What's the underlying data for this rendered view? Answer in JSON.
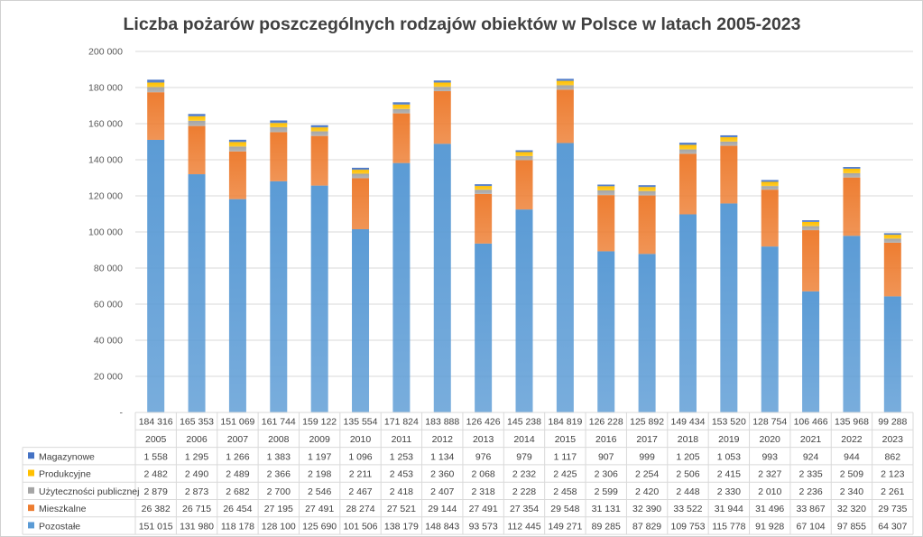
{
  "chart_data": {
    "type": "bar",
    "stacked": true,
    "title": "Liczba pożarów poszczególnych rodzajów obiektów w Polsce w latach 2005-2023",
    "xlabel": "",
    "ylabel": "",
    "ylim": [
      0,
      200000
    ],
    "yticks": [
      "-",
      "20 000",
      "40 000",
      "60 000",
      "80 000",
      "100 000",
      "120 000",
      "140 000",
      "160 000",
      "180 000",
      "200 000"
    ],
    "grid": true,
    "legend": "data-table-left",
    "categories": [
      "2005",
      "2006",
      "2007",
      "2008",
      "2009",
      "2010",
      "2011",
      "2012",
      "2013",
      "2014",
      "2015",
      "2016",
      "2017",
      "2018",
      "2019",
      "2020",
      "2021",
      "2022",
      "2023"
    ],
    "totals": [
      "184 316",
      "165 353",
      "151 069",
      "161 744",
      "159 122",
      "135 554",
      "171 824",
      "183 888",
      "126 426",
      "145 238",
      "184 819",
      "126 228",
      "125 892",
      "149 434",
      "153 520",
      "128 754",
      "106 466",
      "135 968",
      "99 288"
    ],
    "total_values": [
      184316,
      165353,
      151069,
      161744,
      159122,
      135554,
      171824,
      183888,
      126426,
      145238,
      184819,
      126228,
      125892,
      149434,
      153520,
      128754,
      106466,
      135968,
      99288
    ],
    "series": [
      {
        "name": "Pozostałe",
        "color": "#5b9bd5",
        "values": [
          151015,
          131980,
          118178,
          128100,
          125690,
          101506,
          138179,
          148843,
          93573,
          112445,
          149271,
          89285,
          87829,
          109753,
          115778,
          91928,
          67104,
          97855,
          64307
        ],
        "labels": [
          "151 015",
          "131 980",
          "118 178",
          "128 100",
          "125 690",
          "101 506",
          "138 179",
          "148 843",
          "93 573",
          "112 445",
          "149 271",
          "89 285",
          "87 829",
          "109 753",
          "115 778",
          "91 928",
          "67 104",
          "97 855",
          "64 307"
        ]
      },
      {
        "name": "Mieszkalne",
        "color": "#ed7d31",
        "values": [
          26382,
          26715,
          26454,
          27195,
          27491,
          28274,
          27521,
          29144,
          27491,
          27354,
          29548,
          31131,
          32390,
          33522,
          31944,
          31496,
          33867,
          32320,
          29735
        ],
        "labels": [
          "26 382",
          "26 715",
          "26 454",
          "27 195",
          "27 491",
          "28 274",
          "27 521",
          "29 144",
          "27 491",
          "27 354",
          "29 548",
          "31 131",
          "32 390",
          "33 522",
          "31 944",
          "31 496",
          "33 867",
          "32 320",
          "29 735"
        ]
      },
      {
        "name": "Użyteczności publicznej",
        "color": "#a5a5a5",
        "values": [
          2879,
          2873,
          2682,
          2700,
          2546,
          2467,
          2418,
          2407,
          2318,
          2228,
          2458,
          2599,
          2420,
          2448,
          2330,
          2010,
          2236,
          2340,
          2261
        ],
        "labels": [
          "2 879",
          "2 873",
          "2 682",
          "2 700",
          "2 546",
          "2 467",
          "2 418",
          "2 407",
          "2 318",
          "2 228",
          "2 458",
          "2 599",
          "2 420",
          "2 448",
          "2 330",
          "2 010",
          "2 236",
          "2 340",
          "2 261"
        ]
      },
      {
        "name": "Produkcyjne",
        "color": "#ffc000",
        "values": [
          2482,
          2490,
          2489,
          2366,
          2198,
          2211,
          2453,
          2360,
          2068,
          2232,
          2425,
          2306,
          2254,
          2506,
          2415,
          2327,
          2335,
          2509,
          2123
        ],
        "labels": [
          "2 482",
          "2 490",
          "2 489",
          "2 366",
          "2 198",
          "2 211",
          "2 453",
          "2 360",
          "2 068",
          "2 232",
          "2 425",
          "2 306",
          "2 254",
          "2 506",
          "2 415",
          "2 327",
          "2 335",
          "2 509",
          "2 123"
        ]
      },
      {
        "name": "Magazynowe",
        "color": "#4472c4",
        "values": [
          1558,
          1295,
          1266,
          1383,
          1197,
          1096,
          1253,
          1134,
          976,
          979,
          1117,
          907,
          999,
          1205,
          1053,
          993,
          924,
          944,
          862
        ],
        "labels": [
          "1 558",
          "1 295",
          "1 266",
          "1 383",
          "1 197",
          "1 096",
          "1 253",
          "1 134",
          "976",
          "979",
          "1 117",
          "907",
          "999",
          "1 205",
          "1 053",
          "993",
          "924",
          "944",
          "862"
        ]
      }
    ]
  }
}
